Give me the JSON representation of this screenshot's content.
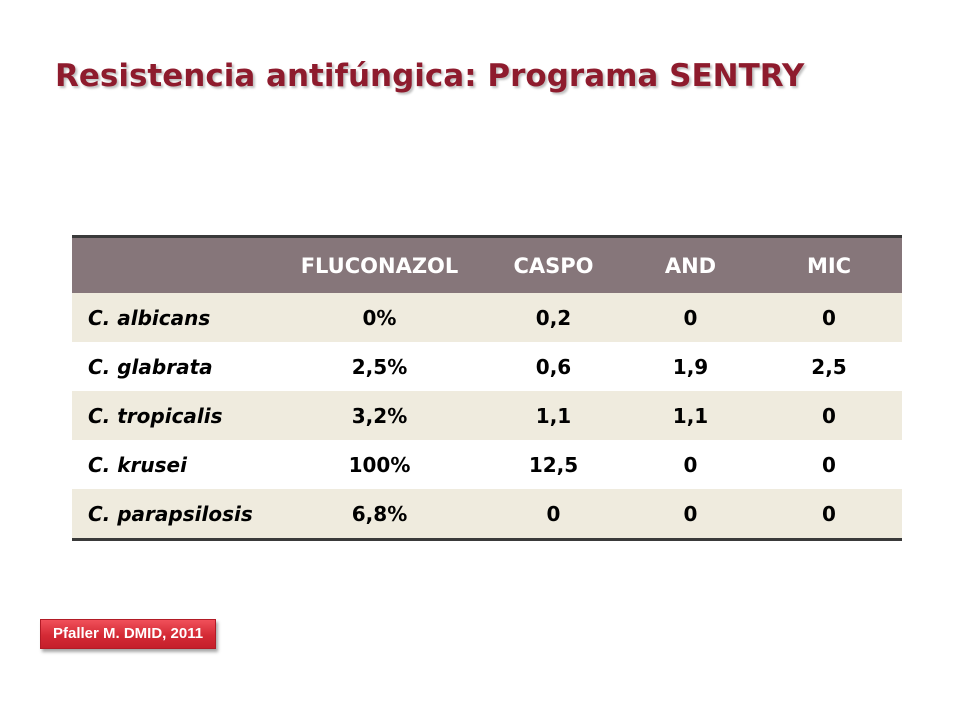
{
  "slide": {
    "title": "Resistencia antifúngica: Programa SENTRY",
    "colors": {
      "title": "#8e1b2d",
      "header_bg": "#86767a",
      "row_alt_bg": "#efebde",
      "citation_bg": "#d42a35"
    }
  },
  "table": {
    "headers": [
      "",
      "FLUCONAZOL",
      "CASPO",
      "AND",
      "MIC"
    ],
    "rows": [
      {
        "species": "C. albicans",
        "values": [
          "0%",
          "0,2",
          "0",
          "0"
        ]
      },
      {
        "species": "C. glabrata",
        "values": [
          "2,5%",
          "0,6",
          "1,9",
          "2,5"
        ]
      },
      {
        "species": "C. tropicalis",
        "values": [
          "3,2%",
          "1,1",
          "1,1",
          "0"
        ]
      },
      {
        "species": "C. krusei",
        "values": [
          "100%",
          "12,5",
          "0",
          "0"
        ]
      },
      {
        "species": "C. parapsilosis",
        "values": [
          "6,8%",
          "0",
          "0",
          "0"
        ]
      }
    ]
  },
  "citation": {
    "text": "Pfaller M. DMID, 2011"
  }
}
